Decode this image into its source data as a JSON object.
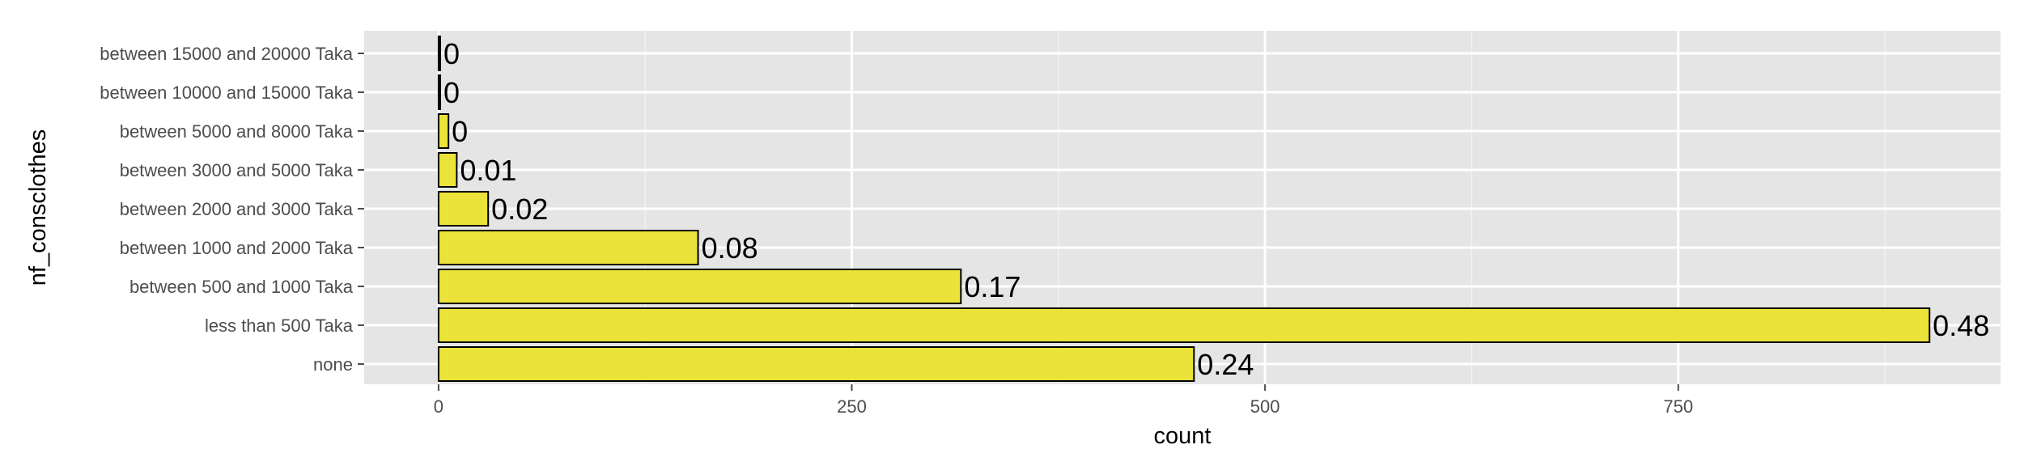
{
  "chart_data": {
    "type": "bar",
    "orientation": "horizontal",
    "title": "",
    "xlabel": "count",
    "ylabel": "nf_consclothes",
    "xlim": [
      -45,
      945
    ],
    "xticks": [
      0,
      250,
      500,
      750
    ],
    "categories": [
      "none",
      "less than 500 Taka",
      "between 500 and 1000 Taka",
      "between 1000 and 2000 Taka",
      "between 2000 and 3000 Taka",
      "between 3000 and 5000 Taka",
      "between 5000 and 8000 Taka",
      "between 10000 and 15000 Taka",
      "between 15000 and 20000 Taka"
    ],
    "values": [
      457,
      902,
      316,
      157,
      30,
      11,
      6,
      1,
      1
    ],
    "labels": [
      "0.24",
      "0.48",
      "0.17",
      "0.08",
      "0.02",
      "0.01",
      "0",
      "0",
      "0"
    ],
    "grid": true,
    "legend": "none"
  },
  "colors": {
    "panel_background": "#e5e5e5",
    "grid_major": "#ffffff",
    "grid_minor": "#f2f2f2",
    "bar_fill": "#ebe33a",
    "bar_stroke": "#000000",
    "tick_mark": "#4d4d4d"
  }
}
